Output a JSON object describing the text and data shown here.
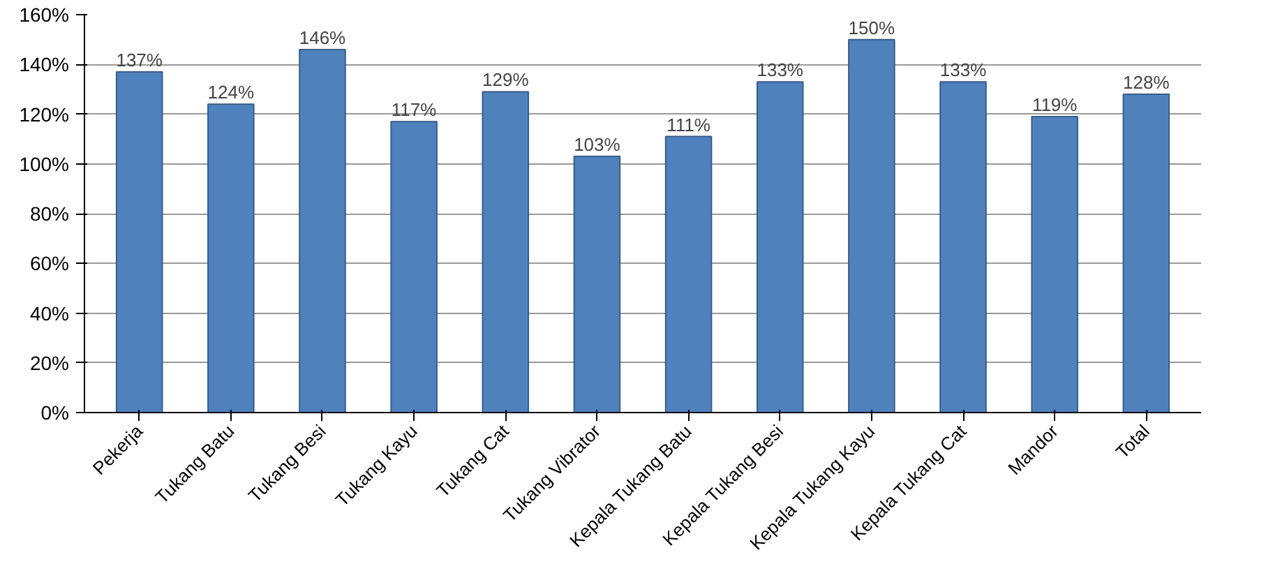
{
  "chart_data": {
    "type": "bar",
    "categories": [
      "Pekerja",
      "Tukang Batu",
      "Tukang Besi",
      "Tukang Kayu",
      "Tukang Cat",
      "Tukang Vibrator",
      "Kepala Tukang Batu",
      "Kepala Tukang Besi",
      "Kepala Tukang Kayu",
      "Kepala Tukang Cat",
      "Mandor",
      "Total"
    ],
    "values": [
      137,
      124,
      146,
      117,
      129,
      103,
      111,
      133,
      150,
      133,
      119,
      128
    ],
    "value_labels": [
      "137%",
      "124%",
      "146%",
      "117%",
      "129%",
      "103%",
      "111%",
      "133%",
      "150%",
      "133%",
      "119%",
      "128%"
    ],
    "color": "#4f81bd",
    "ylim": [
      0,
      160
    ],
    "yticks": [
      {
        "value": 0,
        "label": "0%"
      },
      {
        "value": 20,
        "label": "20%"
      },
      {
        "value": 40,
        "label": "40%"
      },
      {
        "value": 60,
        "label": "60%"
      },
      {
        "value": 80,
        "label": "80%"
      },
      {
        "value": 100,
        "label": "100%"
      },
      {
        "value": 120,
        "label": "120%"
      },
      {
        "value": 140,
        "label": "140%"
      },
      {
        "value": 160,
        "label": "160%"
      }
    ],
    "grid": "y"
  }
}
